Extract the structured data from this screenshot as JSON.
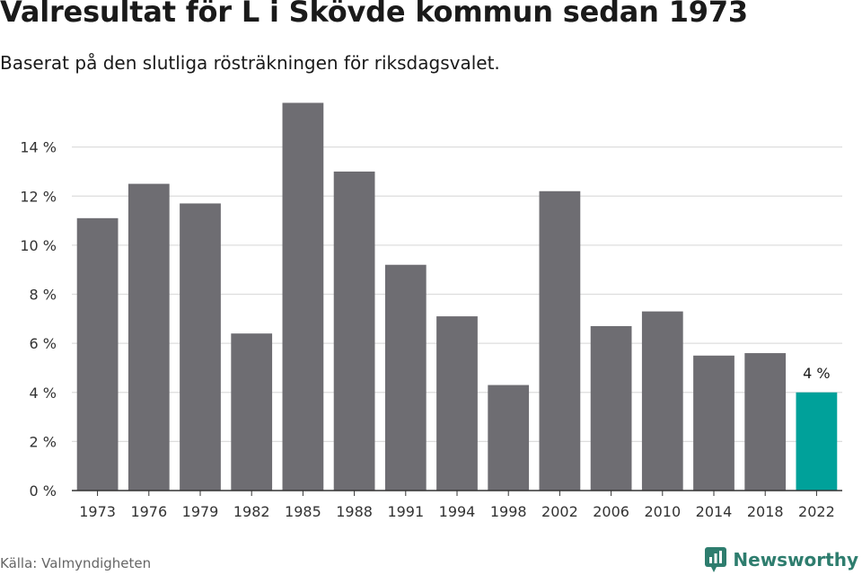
{
  "header": {
    "title": "Valresultat för L i Skövde kommun sedan 1973",
    "subtitle": "Baserat på den slutliga rösträkningen för riksdagsvalet."
  },
  "footer": {
    "source": "Källa: Valmyndigheten",
    "brand": "Newsworthy",
    "brand_icon": "newsworthy-logo-icon"
  },
  "colors": {
    "bar": "#6e6d72",
    "highlight": "#00a19a",
    "grid": "#dddddd",
    "axis": "#333333",
    "brand": "#2e7d6e"
  },
  "chart_data": {
    "type": "bar",
    "categories": [
      "1973",
      "1976",
      "1979",
      "1982",
      "1985",
      "1988",
      "1991",
      "1994",
      "1998",
      "2002",
      "2006",
      "2010",
      "2014",
      "2018",
      "2022"
    ],
    "values": [
      11.1,
      12.5,
      11.7,
      6.4,
      15.8,
      13.0,
      9.2,
      7.1,
      4.3,
      12.2,
      6.7,
      7.3,
      5.5,
      5.6,
      4.0
    ],
    "highlight_index": 14,
    "highlight_label": "4 %",
    "title": "Valresultat för L i Skövde kommun sedan 1973",
    "xlabel": "",
    "ylabel": "",
    "ylim": [
      0,
      16
    ],
    "yticks": [
      0,
      2,
      4,
      6,
      8,
      10,
      12,
      14
    ],
    "ytick_labels": [
      "0 %",
      "2 %",
      "4 %",
      "6 %",
      "8 %",
      "10 %",
      "12 %",
      "14 %"
    ],
    "grid": true,
    "legend": "none"
  }
}
